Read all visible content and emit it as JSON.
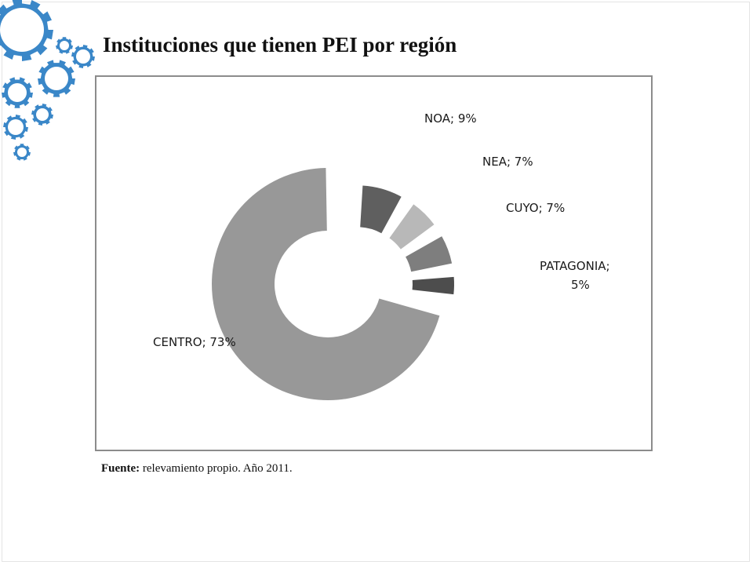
{
  "title": "Instituciones que tienen PEI por región",
  "source": {
    "label": "Fuente:",
    "text": "relevamiento propio. Año 2011."
  },
  "decoration_icon": "gear-cluster-icon",
  "colors": {
    "gear_fill": "#3a87c8",
    "gear_hole": "#ffffff",
    "chart_border": "#8c8c8c"
  },
  "chart_data": {
    "type": "pie",
    "title": "",
    "style": "exploded-donut",
    "slices": [
      {
        "label": "NOA; 9%",
        "name": "NOA",
        "value": 9,
        "color": "#5f5f5f"
      },
      {
        "label": "NEA; 7%",
        "name": "NEA",
        "value": 7,
        "color": "#b8b8b8"
      },
      {
        "label": "CUYO; 7%",
        "name": "CUYO",
        "value": 7,
        "color": "#7e7e7e"
      },
      {
        "label": "PATAGONIA; 5%",
        "name": "PATAGONIA",
        "value": 5,
        "color": "#4d4d4d"
      },
      {
        "label": "CENTRO; 73%",
        "name": "CENTRO",
        "value": 73,
        "color": "#989898"
      }
    ]
  }
}
